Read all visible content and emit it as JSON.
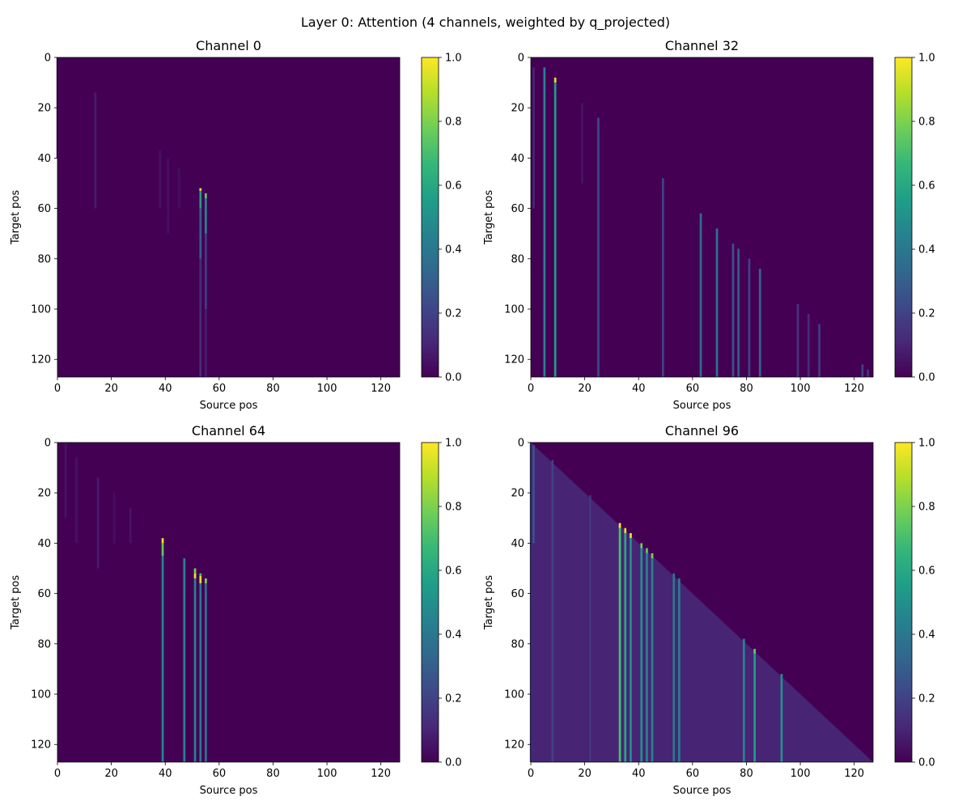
{
  "figure": {
    "title": "Layer 0: Attention (4 channels, weighted by q_projected)"
  },
  "colors": {
    "viridis_stops": [
      "#440154",
      "#482878",
      "#3e4989",
      "#31688e",
      "#26828e",
      "#1f9e89",
      "#35b779",
      "#6ece58",
      "#b5de2b",
      "#fde725"
    ]
  },
  "chart_data": [
    {
      "type": "heatmap",
      "title": "Channel 0",
      "xlabel": "Source pos",
      "ylabel": "Target pos",
      "xlim": [
        0,
        127
      ],
      "ylim": [
        127,
        0
      ],
      "xticks": [
        0,
        20,
        40,
        60,
        80,
        100,
        120
      ],
      "yticks": [
        0,
        20,
        40,
        60,
        80,
        100,
        120
      ],
      "colorbar": {
        "min": 0.0,
        "max": 1.0,
        "ticks": [
          0.0,
          0.2,
          0.4,
          0.6,
          0.8,
          1.0
        ],
        "tick_labels": [
          "0.0",
          "0.2",
          "0.4",
          "0.6",
          "0.8",
          "1.0"
        ]
      },
      "background_value": 0.0,
      "streaks": [
        {
          "src": 0,
          "from": 0,
          "to": 40,
          "v": 0.04
        },
        {
          "src": 14,
          "from": 14,
          "to": 60,
          "v": 0.07
        },
        {
          "src": 38,
          "from": 37,
          "to": 60,
          "v": 0.05
        },
        {
          "src": 41,
          "from": 40,
          "to": 70,
          "v": 0.04
        },
        {
          "src": 45,
          "from": 44,
          "to": 60,
          "v": 0.04
        },
        {
          "src": 53,
          "from": 52,
          "to": 53,
          "v": 1.0
        },
        {
          "src": 53,
          "from": 53,
          "to": 60,
          "v": 0.55
        },
        {
          "src": 53,
          "from": 60,
          "to": 80,
          "v": 0.3
        },
        {
          "src": 53,
          "from": 80,
          "to": 127,
          "v": 0.12
        },
        {
          "src": 55,
          "from": 54,
          "to": 56,
          "v": 0.75
        },
        {
          "src": 55,
          "from": 56,
          "to": 70,
          "v": 0.45
        },
        {
          "src": 55,
          "from": 70,
          "to": 100,
          "v": 0.18
        },
        {
          "src": 55,
          "from": 100,
          "to": 127,
          "v": 0.08
        }
      ]
    },
    {
      "type": "heatmap",
      "title": "Channel 32",
      "xlabel": "Source pos",
      "ylabel": "Target pos",
      "xlim": [
        0,
        127
      ],
      "ylim": [
        127,
        0
      ],
      "xticks": [
        0,
        20,
        40,
        60,
        80,
        100,
        120
      ],
      "yticks": [
        0,
        20,
        40,
        60,
        80,
        100,
        120
      ],
      "colorbar": {
        "min": 0.0,
        "max": 1.0,
        "ticks": [
          0.0,
          0.2,
          0.4,
          0.6,
          0.8,
          1.0
        ],
        "tick_labels": [
          "0.0",
          "0.2",
          "0.4",
          "0.6",
          "0.8",
          "1.0"
        ]
      },
      "background_value": 0.0,
      "streaks": [
        {
          "src": 1,
          "from": 4,
          "to": 60,
          "v": 0.1
        },
        {
          "src": 5,
          "from": 4,
          "to": 127,
          "v": 0.45
        },
        {
          "src": 9,
          "from": 8,
          "to": 10,
          "v": 0.95
        },
        {
          "src": 9,
          "from": 10,
          "to": 127,
          "v": 0.55
        },
        {
          "src": 19,
          "from": 18,
          "to": 50,
          "v": 0.05
        },
        {
          "src": 25,
          "from": 24,
          "to": 127,
          "v": 0.22
        },
        {
          "src": 49,
          "from": 48,
          "to": 127,
          "v": 0.2
        },
        {
          "src": 63,
          "from": 62,
          "to": 127,
          "v": 0.35
        },
        {
          "src": 69,
          "from": 68,
          "to": 127,
          "v": 0.38
        },
        {
          "src": 75,
          "from": 74,
          "to": 127,
          "v": 0.25
        },
        {
          "src": 77,
          "from": 76,
          "to": 127,
          "v": 0.28
        },
        {
          "src": 81,
          "from": 80,
          "to": 127,
          "v": 0.2
        },
        {
          "src": 85,
          "from": 84,
          "to": 127,
          "v": 0.32
        },
        {
          "src": 99,
          "from": 98,
          "to": 127,
          "v": 0.15
        },
        {
          "src": 103,
          "from": 102,
          "to": 127,
          "v": 0.12
        },
        {
          "src": 107,
          "from": 106,
          "to": 127,
          "v": 0.18
        },
        {
          "src": 123,
          "from": 122,
          "to": 127,
          "v": 0.2
        },
        {
          "src": 125,
          "from": 124,
          "to": 127,
          "v": 0.15
        }
      ]
    },
    {
      "type": "heatmap",
      "title": "Channel 64",
      "xlabel": "Source pos",
      "ylabel": "Target pos",
      "xlim": [
        0,
        127
      ],
      "ylim": [
        127,
        0
      ],
      "xticks": [
        0,
        20,
        40,
        60,
        80,
        100,
        120
      ],
      "yticks": [
        0,
        20,
        40,
        60,
        80,
        100,
        120
      ],
      "colorbar": {
        "min": 0.0,
        "max": 1.0,
        "ticks": [
          0.0,
          0.2,
          0.4,
          0.6,
          0.8,
          1.0
        ],
        "tick_labels": [
          "0.0",
          "0.2",
          "0.4",
          "0.6",
          "0.8",
          "1.0"
        ]
      },
      "background_value": 0.0,
      "streaks": [
        {
          "src": 3,
          "from": 0,
          "to": 30,
          "v": 0.05
        },
        {
          "src": 7,
          "from": 6,
          "to": 40,
          "v": 0.05
        },
        {
          "src": 15,
          "from": 14,
          "to": 50,
          "v": 0.07
        },
        {
          "src": 21,
          "from": 20,
          "to": 40,
          "v": 0.04
        },
        {
          "src": 27,
          "from": 26,
          "to": 40,
          "v": 0.05
        },
        {
          "src": 39,
          "from": 38,
          "to": 40,
          "v": 0.98
        },
        {
          "src": 39,
          "from": 40,
          "to": 45,
          "v": 0.75
        },
        {
          "src": 39,
          "from": 45,
          "to": 127,
          "v": 0.45
        },
        {
          "src": 47,
          "from": 46,
          "to": 127,
          "v": 0.45
        },
        {
          "src": 51,
          "from": 50,
          "to": 52,
          "v": 0.8
        },
        {
          "src": 51,
          "from": 52,
          "to": 54,
          "v": 0.98
        },
        {
          "src": 51,
          "from": 54,
          "to": 127,
          "v": 0.45
        },
        {
          "src": 53,
          "from": 52,
          "to": 53,
          "v": 0.7
        },
        {
          "src": 53,
          "from": 53,
          "to": 56,
          "v": 0.95
        },
        {
          "src": 53,
          "from": 56,
          "to": 127,
          "v": 0.4
        },
        {
          "src": 55,
          "from": 54,
          "to": 56,
          "v": 0.8
        },
        {
          "src": 55,
          "from": 56,
          "to": 127,
          "v": 0.38
        }
      ]
    },
    {
      "type": "heatmap",
      "title": "Channel 96",
      "xlabel": "Source pos",
      "ylabel": "Target pos",
      "xlim": [
        0,
        127
      ],
      "ylim": [
        127,
        0
      ],
      "xticks": [
        0,
        20,
        40,
        60,
        80,
        100,
        120
      ],
      "yticks": [
        0,
        20,
        40,
        60,
        80,
        100,
        120
      ],
      "colorbar": {
        "min": 0.0,
        "max": 1.0,
        "ticks": [
          0.0,
          0.2,
          0.4,
          0.6,
          0.8,
          1.0
        ],
        "tick_labels": [
          "0.0",
          "0.2",
          "0.4",
          "0.6",
          "0.8",
          "1.0"
        ]
      },
      "background_value": 0.0,
      "triangle": {
        "v": 0.1
      },
      "streaks": [
        {
          "src": 0,
          "from": 0,
          "to": 127,
          "v": 0.18
        },
        {
          "src": 1,
          "from": 1,
          "to": 40,
          "v": 0.25
        },
        {
          "src": 8,
          "from": 7,
          "to": 127,
          "v": 0.2
        },
        {
          "src": 22,
          "from": 21,
          "to": 127,
          "v": 0.15
        },
        {
          "src": 33,
          "from": 32,
          "to": 34,
          "v": 1.0
        },
        {
          "src": 33,
          "from": 34,
          "to": 127,
          "v": 0.7
        },
        {
          "src": 35,
          "from": 34,
          "to": 36,
          "v": 0.95
        },
        {
          "src": 35,
          "from": 36,
          "to": 127,
          "v": 0.6
        },
        {
          "src": 37,
          "from": 36,
          "to": 38,
          "v": 0.98
        },
        {
          "src": 37,
          "from": 38,
          "to": 127,
          "v": 0.5
        },
        {
          "src": 41,
          "from": 40,
          "to": 42,
          "v": 0.78
        },
        {
          "src": 41,
          "from": 42,
          "to": 127,
          "v": 0.5
        },
        {
          "src": 43,
          "from": 42,
          "to": 44,
          "v": 0.75
        },
        {
          "src": 43,
          "from": 44,
          "to": 127,
          "v": 0.45
        },
        {
          "src": 45,
          "from": 44,
          "to": 46,
          "v": 0.8
        },
        {
          "src": 45,
          "from": 46,
          "to": 127,
          "v": 0.45
        },
        {
          "src": 53,
          "from": 52,
          "to": 127,
          "v": 0.4
        },
        {
          "src": 55,
          "from": 54,
          "to": 127,
          "v": 0.42
        },
        {
          "src": 79,
          "from": 78,
          "to": 127,
          "v": 0.45
        },
        {
          "src": 83,
          "from": 82,
          "to": 84,
          "v": 0.75
        },
        {
          "src": 83,
          "from": 84,
          "to": 127,
          "v": 0.55
        },
        {
          "src": 93,
          "from": 92,
          "to": 127,
          "v": 0.5
        }
      ]
    }
  ]
}
